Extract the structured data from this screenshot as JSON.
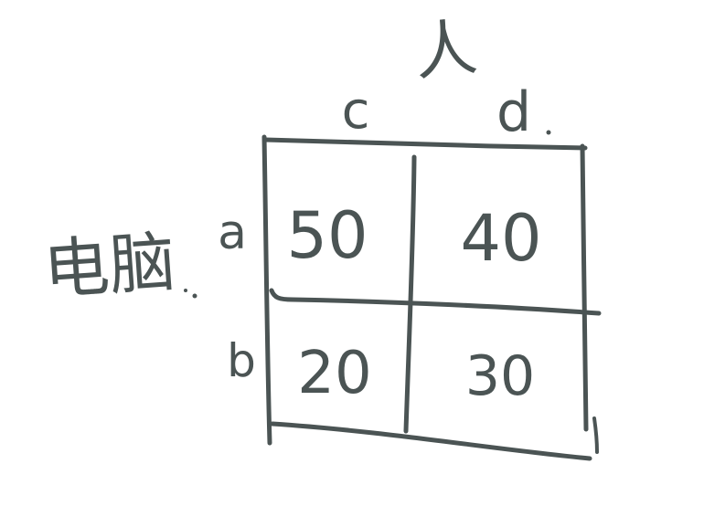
{
  "title": "人",
  "columns": [
    "c",
    "d"
  ],
  "rows": [
    {
      "label": "a",
      "cells": [
        "50",
        "40"
      ]
    },
    {
      "label": "b",
      "cells": [
        "20",
        "30"
      ]
    }
  ],
  "side_label": "电脑",
  "ink_color": "#4b5454"
}
